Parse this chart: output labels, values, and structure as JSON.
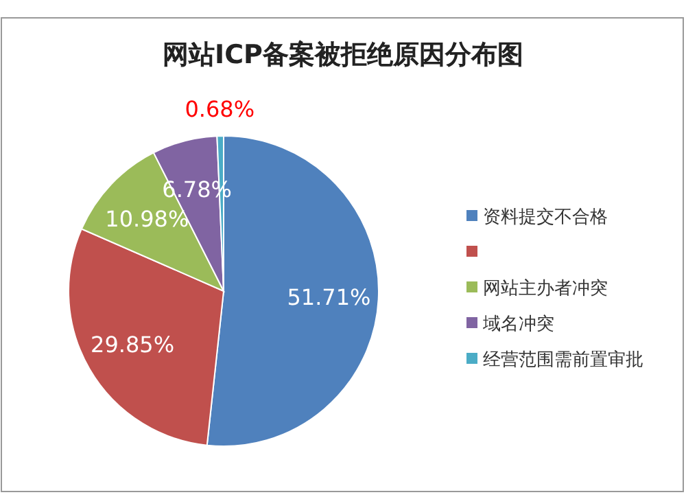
{
  "chart_data": {
    "type": "pie",
    "title": "网站ICP备案被拒绝原因分布图",
    "categories": [
      "资料提交不合格",
      null,
      "网站主办者冲突",
      "域名冲突",
      "经营范围需前置审批"
    ],
    "values": [
      51.71,
      29.85,
      10.98,
      6.78,
      0.68
    ],
    "colors": [
      "#4f81bd",
      "#c0504d",
      "#9bbb59",
      "#8064a2",
      "#4bacc6"
    ],
    "value_labels": [
      "51.71%",
      "29.85%",
      "10.98%",
      "6.78%",
      "0.68%"
    ],
    "legend": "right"
  }
}
